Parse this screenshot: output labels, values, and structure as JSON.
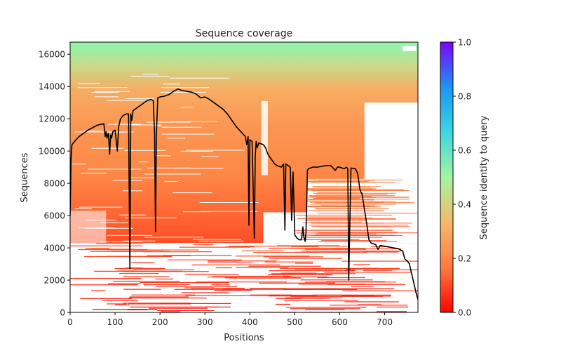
{
  "chart_data": {
    "type": "heatmap",
    "title": "Sequence coverage",
    "xlabel": "Positions",
    "ylabel": "Sequences",
    "xlim": [
      0,
      774
    ],
    "ylim": [
      0,
      16750
    ],
    "xticks": [
      0,
      100,
      200,
      300,
      400,
      500,
      600,
      700
    ],
    "xtick_labels": [
      "0",
      "100",
      "200",
      "300",
      "400",
      "500",
      "600",
      "700"
    ],
    "yticks": [
      0,
      2000,
      4000,
      6000,
      8000,
      10000,
      12000,
      14000,
      16000
    ],
    "ytick_labels": [
      "0",
      "2000",
      "4000",
      "6000",
      "8000",
      "10000",
      "12000",
      "14000",
      "16000"
    ],
    "grid": false,
    "colorbar": {
      "label": "Sequence identity to query",
      "colormap": "rainbow_r",
      "range": [
        0.0,
        1.0
      ],
      "ticks": [
        0.0,
        0.2,
        0.4,
        0.6,
        0.8,
        1.0
      ],
      "tick_labels": [
        "0.0",
        "0.2",
        "0.4",
        "0.6",
        "0.8",
        "1.0"
      ],
      "stops": [
        "#ff0000",
        "#ff7a3d",
        "#f6b96c",
        "#a3f59f",
        "#3dd6e0",
        "#1996f3",
        "#7f00ff"
      ]
    },
    "identity_bands": [
      {
        "y_from": 16000,
        "y_to": 16750,
        "identity": 0.52
      },
      {
        "y_from": 14500,
        "y_to": 16000,
        "identity": 0.42
      },
      {
        "y_from": 13000,
        "y_to": 14500,
        "identity": 0.3
      },
      {
        "y_from": 10000,
        "y_to": 13000,
        "identity": 0.24
      },
      {
        "y_from": 7000,
        "y_to": 10000,
        "identity": 0.2
      },
      {
        "y_from": 4000,
        "y_to": 7000,
        "identity": 0.13
      },
      {
        "y_from": 0,
        "y_to": 4000,
        "identity": 0.06
      }
    ],
    "coverage_line": {
      "name": "coverage",
      "color": "#000000",
      "x": [
        0,
        2,
        4,
        10,
        20,
        40,
        60,
        75,
        78,
        80,
        82,
        85,
        88,
        90,
        92,
        95,
        100,
        105,
        108,
        112,
        118,
        125,
        130,
        133,
        135,
        137,
        140,
        150,
        160,
        170,
        180,
        185,
        188,
        190,
        192,
        195,
        200,
        210,
        220,
        230,
        240,
        250,
        260,
        270,
        280,
        290,
        300,
        310,
        320,
        330,
        340,
        350,
        360,
        370,
        380,
        390,
        393,
        396,
        398,
        400,
        405,
        410,
        412,
        414,
        416,
        420,
        430,
        435,
        440,
        445,
        450,
        455,
        460,
        470,
        475,
        478,
        480,
        485,
        490,
        493,
        496,
        500,
        505,
        510,
        515,
        518,
        520,
        523,
        525,
        528,
        530,
        540,
        550,
        560,
        570,
        580,
        590,
        595,
        600,
        610,
        615,
        618,
        620,
        625,
        635,
        640,
        645,
        650,
        655,
        660,
        665,
        670,
        680,
        685,
        690,
        700,
        710,
        720,
        730,
        740,
        745,
        750,
        755,
        760,
        765,
        770,
        774
      ],
      "y": [
        6000,
        9500,
        10400,
        10600,
        10900,
        11300,
        11600,
        11700,
        10900,
        11200,
        10800,
        11100,
        9800,
        11000,
        10800,
        11200,
        11300,
        10000,
        11500,
        12000,
        12200,
        12300,
        12300,
        2700,
        12300,
        11900,
        12500,
        12700,
        12900,
        13100,
        13200,
        13100,
        11000,
        5000,
        11000,
        13300,
        13350,
        13400,
        13500,
        13700,
        13850,
        13750,
        13700,
        13650,
        13550,
        13300,
        13350,
        13200,
        13000,
        12800,
        12600,
        12300,
        11900,
        11500,
        11200,
        10900,
        10400,
        10900,
        5400,
        10700,
        10600,
        4600,
        9700,
        10600,
        10200,
        10500,
        10400,
        10200,
        9800,
        9600,
        9400,
        9200,
        9100,
        9000,
        9200,
        5100,
        9200,
        9100,
        9000,
        5700,
        8700,
        4800,
        4600,
        4500,
        4500,
        5300,
        4700,
        4400,
        5000,
        8800,
        8900,
        9000,
        9000,
        9050,
        9100,
        9100,
        8800,
        9000,
        9000,
        8900,
        9000,
        8900,
        2000,
        8950,
        8900,
        8600,
        7600,
        7300,
        6400,
        5500,
        4500,
        4300,
        4200,
        3900,
        4150,
        4100,
        4050,
        4000,
        3950,
        3800,
        3300,
        3200,
        3000,
        2400,
        1800,
        1200,
        800
      ]
    }
  }
}
